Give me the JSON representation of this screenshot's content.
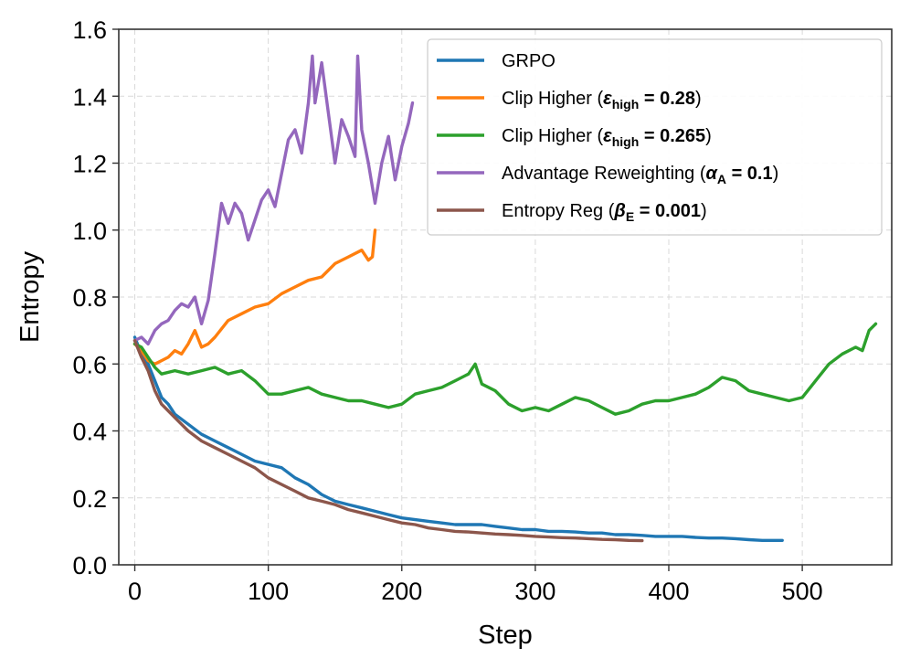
{
  "chart_data": {
    "type": "line",
    "title": "",
    "xlabel": "Step",
    "ylabel": "Entropy",
    "xlim": [
      -12,
      567
    ],
    "ylim": [
      0.0,
      1.6
    ],
    "xticks": [
      0,
      100,
      200,
      300,
      400,
      500
    ],
    "yticks": [
      0.0,
      0.2,
      0.4,
      0.6,
      0.8,
      1.0,
      1.2,
      1.4,
      1.6
    ],
    "xtick_labels": [
      "0",
      "100",
      "200",
      "300",
      "400",
      "500"
    ],
    "ytick_labels": [
      "0.0",
      "0.2",
      "0.4",
      "0.6",
      "0.8",
      "1.0",
      "1.2",
      "1.4",
      "1.6"
    ],
    "grid": true,
    "legend_position": "top-right",
    "series": [
      {
        "name": "GRPO",
        "color": "#1f77b4",
        "legend_parts": [],
        "x": [
          0,
          5,
          10,
          15,
          20,
          25,
          30,
          40,
          50,
          60,
          70,
          80,
          90,
          100,
          110,
          120,
          130,
          140,
          150,
          160,
          170,
          180,
          190,
          200,
          210,
          220,
          230,
          240,
          250,
          260,
          270,
          280,
          290,
          300,
          310,
          320,
          330,
          340,
          350,
          360,
          370,
          380,
          390,
          400,
          410,
          420,
          430,
          440,
          450,
          460,
          470,
          480,
          485
        ],
        "y": [
          0.68,
          0.63,
          0.6,
          0.55,
          0.5,
          0.48,
          0.45,
          0.42,
          0.39,
          0.37,
          0.35,
          0.33,
          0.31,
          0.3,
          0.29,
          0.26,
          0.24,
          0.21,
          0.19,
          0.18,
          0.17,
          0.16,
          0.15,
          0.14,
          0.135,
          0.13,
          0.125,
          0.12,
          0.12,
          0.12,
          0.115,
          0.11,
          0.105,
          0.105,
          0.1,
          0.1,
          0.098,
          0.095,
          0.095,
          0.09,
          0.09,
          0.088,
          0.085,
          0.085,
          0.085,
          0.082,
          0.08,
          0.08,
          0.078,
          0.075,
          0.073,
          0.073,
          0.073
        ]
      },
      {
        "name": "Clip Higher (ε_high = 0.28)",
        "color": "#ff7f0e",
        "legend_parts": [
          {
            "t": "Clip Higher (",
            "s": ""
          },
          {
            "t": "ε",
            "s": "bi"
          },
          {
            "t": "high",
            "s": "sub"
          },
          {
            "t": " = 0.28",
            "s": "b"
          },
          {
            "t": ")",
            "s": ""
          }
        ],
        "x": [
          0,
          5,
          10,
          15,
          20,
          25,
          30,
          35,
          40,
          45,
          50,
          55,
          60,
          70,
          80,
          90,
          100,
          110,
          120,
          130,
          140,
          150,
          160,
          170,
          175,
          178,
          180
        ],
        "y": [
          0.66,
          0.64,
          0.61,
          0.6,
          0.61,
          0.62,
          0.64,
          0.63,
          0.66,
          0.7,
          0.65,
          0.66,
          0.68,
          0.73,
          0.75,
          0.77,
          0.78,
          0.81,
          0.83,
          0.85,
          0.86,
          0.9,
          0.92,
          0.94,
          0.91,
          0.92,
          1.0
        ]
      },
      {
        "name": "Clip Higher (ε_high = 0.265)",
        "color": "#2ca02c",
        "legend_parts": [
          {
            "t": "Clip Higher (",
            "s": ""
          },
          {
            "t": "ε",
            "s": "bi"
          },
          {
            "t": "high",
            "s": "sub"
          },
          {
            "t": " = 0.265",
            "s": "b"
          },
          {
            "t": ")",
            "s": ""
          }
        ],
        "x": [
          0,
          5,
          10,
          15,
          20,
          30,
          40,
          50,
          60,
          70,
          80,
          90,
          100,
          110,
          120,
          130,
          140,
          150,
          160,
          170,
          180,
          190,
          200,
          210,
          220,
          230,
          240,
          250,
          255,
          260,
          270,
          280,
          290,
          300,
          310,
          320,
          330,
          340,
          350,
          360,
          370,
          380,
          390,
          400,
          410,
          420,
          430,
          440,
          450,
          460,
          470,
          480,
          490,
          500,
          510,
          520,
          530,
          540,
          545,
          550,
          555
        ],
        "y": [
          0.66,
          0.65,
          0.62,
          0.59,
          0.57,
          0.58,
          0.57,
          0.58,
          0.59,
          0.57,
          0.58,
          0.55,
          0.51,
          0.51,
          0.52,
          0.53,
          0.51,
          0.5,
          0.49,
          0.49,
          0.48,
          0.47,
          0.48,
          0.51,
          0.52,
          0.53,
          0.55,
          0.57,
          0.6,
          0.54,
          0.52,
          0.48,
          0.46,
          0.47,
          0.46,
          0.48,
          0.5,
          0.49,
          0.47,
          0.45,
          0.46,
          0.48,
          0.49,
          0.49,
          0.5,
          0.51,
          0.53,
          0.56,
          0.55,
          0.52,
          0.51,
          0.5,
          0.49,
          0.5,
          0.55,
          0.6,
          0.63,
          0.65,
          0.64,
          0.7,
          0.72
        ]
      },
      {
        "name": "Advantage Reweighting (α_A = 0.1)",
        "color": "#9467bd",
        "legend_parts": [
          {
            "t": "Advantage Reweighting (",
            "s": ""
          },
          {
            "t": "α",
            "s": "bi"
          },
          {
            "t": "A",
            "s": "sub"
          },
          {
            "t": " = 0.1",
            "s": "b"
          },
          {
            "t": ")",
            "s": ""
          }
        ],
        "x": [
          0,
          5,
          10,
          15,
          20,
          25,
          30,
          35,
          40,
          45,
          50,
          55,
          60,
          65,
          70,
          75,
          80,
          85,
          90,
          95,
          100,
          105,
          110,
          115,
          120,
          125,
          130,
          133,
          135,
          140,
          145,
          150,
          155,
          160,
          165,
          167,
          170,
          175,
          180,
          185,
          190,
          195,
          200,
          205,
          208
        ],
        "y": [
          0.67,
          0.68,
          0.66,
          0.7,
          0.72,
          0.73,
          0.76,
          0.78,
          0.77,
          0.8,
          0.72,
          0.79,
          0.93,
          1.08,
          1.02,
          1.08,
          1.05,
          0.97,
          1.03,
          1.09,
          1.12,
          1.07,
          1.17,
          1.27,
          1.3,
          1.23,
          1.38,
          1.52,
          1.38,
          1.5,
          1.35,
          1.2,
          1.33,
          1.28,
          1.22,
          1.52,
          1.3,
          1.2,
          1.08,
          1.2,
          1.28,
          1.15,
          1.25,
          1.32,
          1.38
        ]
      },
      {
        "name": "Entropy Reg (β_E = 0.001)",
        "color": "#8c564b",
        "legend_parts": [
          {
            "t": "Entropy Reg (",
            "s": ""
          },
          {
            "t": "β",
            "s": "bi"
          },
          {
            "t": "E",
            "s": "sub"
          },
          {
            "t": " = 0.001",
            "s": "b"
          },
          {
            "t": ")",
            "s": ""
          }
        ],
        "x": [
          0,
          5,
          10,
          15,
          20,
          25,
          30,
          40,
          50,
          60,
          70,
          80,
          90,
          100,
          110,
          120,
          130,
          140,
          150,
          160,
          170,
          180,
          190,
          200,
          210,
          220,
          230,
          240,
          250,
          260,
          270,
          280,
          290,
          300,
          310,
          320,
          330,
          340,
          350,
          360,
          370,
          380
        ],
        "y": [
          0.67,
          0.62,
          0.58,
          0.52,
          0.48,
          0.46,
          0.44,
          0.4,
          0.37,
          0.35,
          0.33,
          0.31,
          0.29,
          0.26,
          0.24,
          0.22,
          0.2,
          0.19,
          0.18,
          0.165,
          0.155,
          0.145,
          0.135,
          0.125,
          0.12,
          0.11,
          0.105,
          0.1,
          0.098,
          0.095,
          0.092,
          0.09,
          0.088,
          0.085,
          0.083,
          0.081,
          0.08,
          0.078,
          0.076,
          0.075,
          0.073,
          0.072
        ]
      }
    ]
  }
}
